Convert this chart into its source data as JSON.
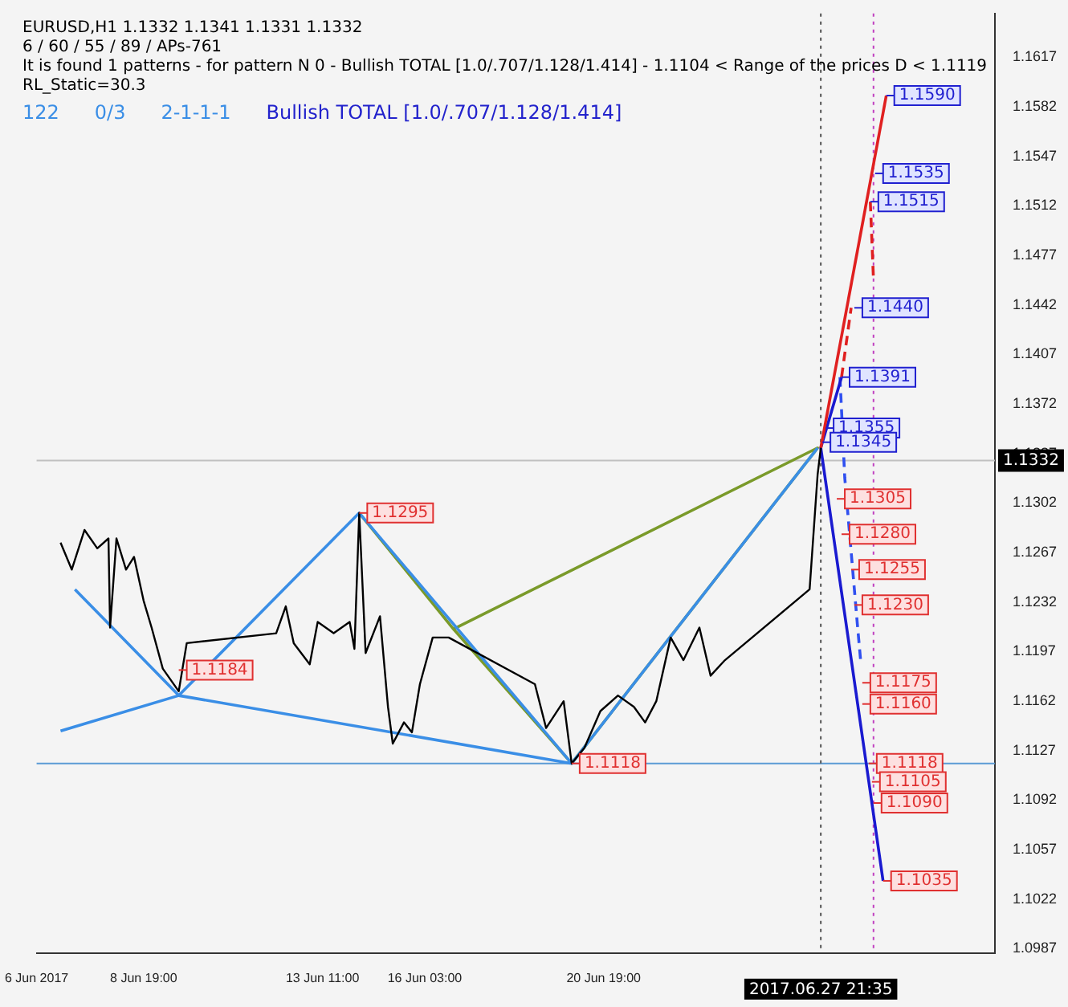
{
  "chart_data": {
    "type": "line",
    "title": "EURUSD,H1  1.1332 1.1341 1.1331 1.1332",
    "subtitle": "6 / 60 / 55 / 89 / APs-761",
    "annotations": [
      "It is found 1 patterns  -  for pattern N 0 - Bullish TOTAL [1.0/.707/1.128/1.414] - 1.1104 < Range of the prices D < 1.1119",
      "RL_Static=30.3",
      "122",
      "0/3",
      "2-1-1-1",
      "Bullish TOTAL [1.0/.707/1.128/1.414]",
      "2017.06.27 21:35",
      {
        "text": "1.1590",
        "x": "2017-06-28T04:00",
        "y": 1.159
      },
      {
        "text": "1.1535",
        "x": "2017-06-27T21:00",
        "y": 1.1535
      },
      {
        "text": "1.1515",
        "x": "2017-06-27T18:00",
        "y": 1.1515
      },
      {
        "text": "1.1440",
        "x": "2017-06-27T08:00",
        "y": 1.144
      },
      {
        "text": "1.1391",
        "x": "2017-06-27T00:00",
        "y": 1.1391
      },
      {
        "text": "1.1355",
        "x": "2017-06-26T14:00",
        "y": 1.1355
      },
      {
        "text": "1.1345",
        "x": "2017-06-26T12:00",
        "y": 1.1345
      },
      {
        "text": "1.1305",
        "x": "2017-06-26T21:00",
        "y": 1.1305
      },
      {
        "text": "1.1280",
        "x": "2017-06-27T00:00",
        "y": 1.128
      },
      {
        "text": "1.1255",
        "x": "2017-06-27T06:00",
        "y": 1.1255
      },
      {
        "text": "1.1230",
        "x": "2017-06-27T08:00",
        "y": 1.123
      },
      {
        "text": "1.1175",
        "x": "2017-06-27T13:00",
        "y": 1.1175
      },
      {
        "text": "1.1160",
        "x": "2017-06-27T13:00",
        "y": 1.116
      },
      {
        "text": "1.1118",
        "x": "2017-06-27T17:00",
        "y": 1.1118
      },
      {
        "text": "1.1105",
        "x": "2017-06-27T19:00",
        "y": 1.1105
      },
      {
        "text": "1.1090",
        "x": "2017-06-27T20:00",
        "y": 1.109
      },
      {
        "text": "1.1035",
        "x": "2017-06-28T02:00",
        "y": 1.1035
      },
      {
        "text": "1.1295",
        "x": "2017-06-14T10:00",
        "y": 1.1295
      },
      {
        "text": "1.1184",
        "x": "2017-06-09T17:00",
        "y": 1.1184
      },
      {
        "text": "1.1118",
        "x": "2017-06-19T23:00",
        "y": 1.1118
      }
    ],
    "xlim": [
      "2017-06-06T00:00",
      "2017-07-01T00:00"
    ],
    "xticks": [
      {
        "value": "2017-06-06",
        "label": "6 Jun 2017"
      },
      {
        "value": "2017-06-08T19:00",
        "label": "8 Jun 19:00"
      },
      {
        "value": "2017-06-13T11:00",
        "label": "13 Jun 11:00"
      },
      {
        "value": "2017-06-16T03:00",
        "label": "16 Jun 03:00"
      },
      {
        "value": "2017-06-20T19:00",
        "label": "20 Jun 19:00"
      }
    ],
    "ylim": [
      1.0984,
      1.1648
    ],
    "yticks": [
      1.0987,
      1.1022,
      1.1057,
      1.1092,
      1.1127,
      1.1162,
      1.1197,
      1.1232,
      1.1267,
      1.1302,
      1.1337,
      1.1372,
      1.1407,
      1.1442,
      1.1477,
      1.1512,
      1.1547,
      1.1582,
      1.1617
    ],
    "ref_lines": [
      {
        "axis": "y",
        "value": 1.1332,
        "label": "1.1332",
        "color": "#c0c0c0"
      },
      {
        "axis": "y",
        "value": 1.1118,
        "color": "#5b9bd5"
      },
      {
        "axis": "x",
        "value": "2017-06-26T11:00",
        "color": "#555555",
        "line_style": "dotted"
      },
      {
        "axis": "x",
        "value": "2017-06-27T20:00",
        "color": "#c040c0",
        "line_style": "dotted"
      }
    ],
    "series": [
      {
        "color": "#000000",
        "x": [
          "2017-06-06T15:00",
          "2017-06-06T22:00",
          "2017-06-07T06:00",
          "2017-06-07T14:00",
          "2017-06-07T21:00",
          "2017-06-07T22:00",
          "2017-06-08T02:00",
          "2017-06-08T08:00",
          "2017-06-08T13:00",
          "2017-06-08T19:00",
          "2017-06-09T00:00",
          "2017-06-09T07:00",
          "2017-06-09T17:00",
          "2017-06-09T22:00",
          "2017-06-12T06:00",
          "2017-06-12T12:00",
          "2017-06-12T17:00",
          "2017-06-13T03:00",
          "2017-06-13T08:00",
          "2017-06-13T18:00",
          "2017-06-14T04:00",
          "2017-06-14T07:00",
          "2017-06-14T10:00",
          "2017-06-14T14:00",
          "2017-06-14T23:00",
          "2017-06-15T04:00",
          "2017-06-15T07:00",
          "2017-06-15T14:00",
          "2017-06-15T19:00",
          "2017-06-16T00:00",
          "2017-06-16T08:00",
          "2017-06-16T18:00",
          "2017-06-19T00:00",
          "2017-06-19T07:00",
          "2017-06-19T18:00",
          "2017-06-19T23:00",
          "2017-06-20T07:00",
          "2017-06-20T17:00",
          "2017-06-21T04:00",
          "2017-06-21T14:00",
          "2017-06-21T21:00",
          "2017-06-22T04:00",
          "2017-06-22T13:00",
          "2017-06-22T21:00",
          "2017-06-23T07:00",
          "2017-06-23T14:00",
          "2017-06-23T23:00",
          "2017-06-26T04:00",
          "2017-06-26T09:00",
          "2017-06-26T11:00"
        ],
        "values": [
          1.1274,
          1.1255,
          1.1283,
          1.127,
          1.1277,
          1.1214,
          1.1277,
          1.1255,
          1.1264,
          1.1233,
          1.1214,
          1.1185,
          1.1169,
          1.1203,
          1.121,
          1.1229,
          1.1203,
          1.1188,
          1.1218,
          1.121,
          1.1218,
          1.1199,
          1.1295,
          1.1196,
          1.1222,
          1.1158,
          1.1132,
          1.1147,
          1.114,
          1.1174,
          1.1207,
          1.1207,
          1.1174,
          1.1143,
          1.1162,
          1.1118,
          1.1129,
          1.1155,
          1.1166,
          1.1158,
          1.1147,
          1.1162,
          1.1207,
          1.1191,
          1.1214,
          1.118,
          1.1191,
          1.1241,
          1.1322,
          1.1341
        ]
      },
      {
        "color": "#3a8ee6",
        "x": [
          "2017-06-06T15:00",
          "2017-06-09T17:00",
          "2017-06-14T10:00",
          "2017-06-19T23:00",
          "2017-06-26T09:00"
        ],
        "values": [
          1.1141,
          1.1166,
          1.1295,
          1.1118,
          1.1341
        ]
      },
      {
        "color": "#3a8ee6",
        "x": [
          "2017-06-07T00:00",
          "2017-06-09T17:00",
          "2017-06-19T23:00"
        ],
        "values": [
          1.1241,
          1.1166,
          1.1118
        ]
      },
      {
        "color": "#7a9a2a",
        "x": [
          "2017-06-14T10:00",
          "2017-06-16T21:00",
          "2017-06-19T23:00",
          "2017-06-26T09:00",
          "2017-06-16T21:00"
        ],
        "values": [
          1.1295,
          1.1213,
          1.1118,
          1.1341,
          1.1213
        ]
      },
      {
        "color": "#e02020",
        "x": [
          "2017-06-26T11:00",
          "2017-06-28T04:00"
        ],
        "values": [
          1.1341,
          1.159
        ]
      },
      {
        "color": "#e02020",
        "line_style": "dashed",
        "x": [
          "2017-06-27T18:00",
          "2017-06-27T20:00"
        ],
        "values": [
          1.1515,
          1.146
        ]
      },
      {
        "color": "#e02020",
        "line_style": "dashed",
        "x": [
          "2017-06-27T00:00",
          "2017-06-27T06:00"
        ],
        "values": [
          1.1391,
          1.144
        ]
      },
      {
        "color": "#1a1ad0",
        "x": [
          "2017-06-27T00:00",
          "2017-06-26T11:00",
          "2017-06-28T02:00"
        ],
        "values": [
          1.1391,
          1.1341,
          1.1035
        ]
      },
      {
        "color": "#3050f0",
        "line_style": "dashed",
        "x": [
          "2017-06-26T23:00",
          "2017-06-27T02:00",
          "2017-06-27T10:00",
          "2017-06-27T12:00"
        ],
        "values": [
          1.1391,
          1.132,
          1.1215,
          1.119
        ]
      }
    ]
  }
}
